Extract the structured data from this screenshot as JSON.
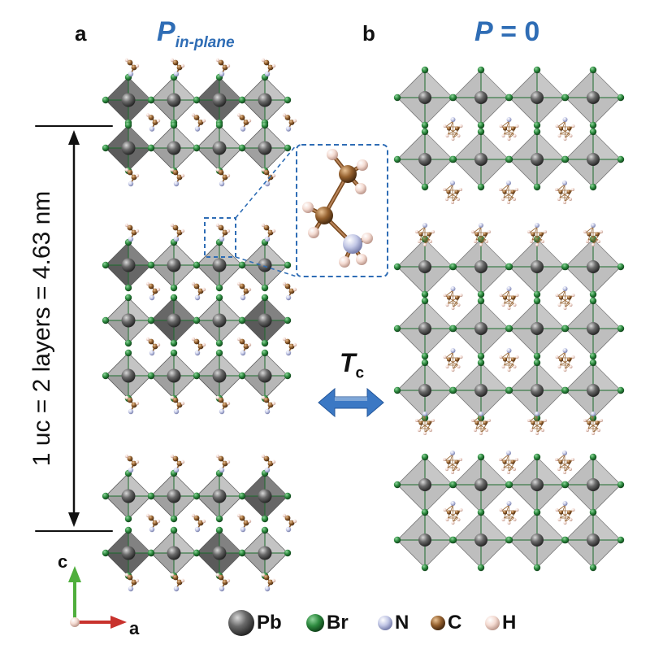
{
  "panel_a": {
    "letter": "a",
    "title_main": "P",
    "title_sub": "in-plane",
    "dimension_label": "1 uc = 2 layers = 4.63 nm"
  },
  "panel_b": {
    "letter": "b",
    "title_main": "P",
    "title_rest": " = 0"
  },
  "transition": {
    "symbol": "T",
    "subscript": "c"
  },
  "axes": {
    "c_label": "c",
    "a_label": "a",
    "c_color": "#4fae3c",
    "a_color": "#c8322d"
  },
  "legend": [
    {
      "key": "Pb",
      "label": "Pb",
      "color": "#4a4a4a"
    },
    {
      "key": "Br",
      "label": "Br",
      "color": "#1c6b2c"
    },
    {
      "key": "N",
      "label": "N",
      "color": "#b9bfdc"
    },
    {
      "key": "C",
      "label": "C",
      "color": "#8a5a2b"
    },
    {
      "key": "H",
      "label": "H",
      "color": "#f1d6cc"
    }
  ],
  "colors": {
    "title_blue": "#2f6db5",
    "octahedron_light": "#9a9a9a",
    "octahedron_dark": "#555555",
    "bond_green": "#1c6b2c",
    "inset_border": "#2f6db5",
    "arrow_blue": "#3b78c4"
  },
  "icons": {
    "double_arrow": "left-right-arrow-icon",
    "axis_c": "arrow-up-icon",
    "axis_a": "arrow-right-icon"
  }
}
